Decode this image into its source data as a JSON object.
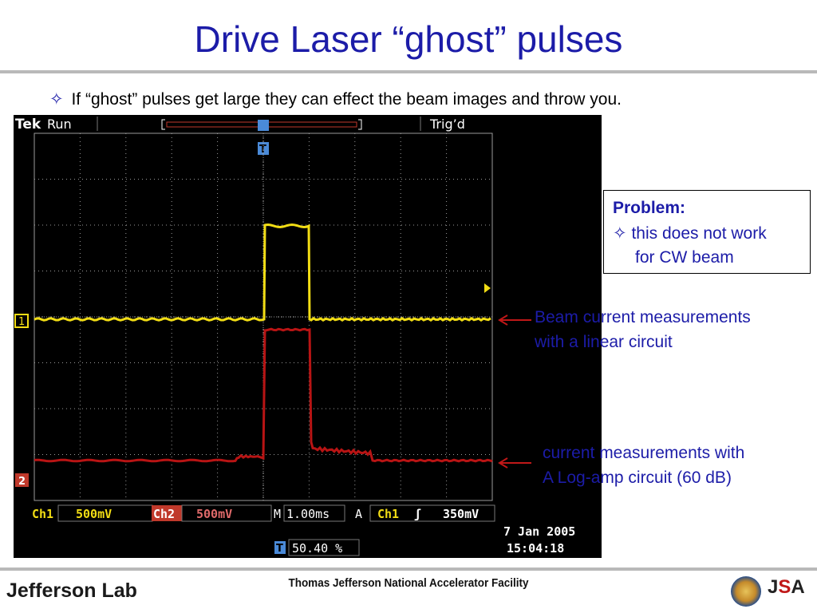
{
  "slide": {
    "title": "Drive Laser “ghost” pulses",
    "bullet_symbol": "✧",
    "bullet_text": "If “ghost” pulses get large they can effect the beam images and throw you."
  },
  "scope": {
    "brand": "Tek",
    "mode": "Run",
    "trig_status": "Trig’d",
    "trigger_marker": "T",
    "ch1_marker": "1",
    "ch2_marker": "2",
    "ch1_label": "Ch1",
    "ch1_scale": "500mV",
    "ch2_label": "Ch2",
    "ch2_scale": "500mV",
    "timebase_prefix": "M",
    "timebase": "1.00ms",
    "trigger_prefix": "A",
    "trigger_source": "Ch1",
    "trigger_slope": "ʃ",
    "trigger_level": "350mV",
    "trigger_position_marker": "T",
    "trigger_position": "50.40 %",
    "date": "7 Jan  2005",
    "time": "15:04:18",
    "colors": {
      "ch1": "#f2dd14",
      "ch2": "#b81414",
      "grid": "#9a9a9a",
      "text": "#ffffff",
      "accent": "#4a8ad8"
    }
  },
  "problem": {
    "heading": "Problem:",
    "bullet_symbol": "✧",
    "line1": "this does not work",
    "line2": "for CW beam"
  },
  "annotations": {
    "linear": {
      "line1": "Beam current measurements",
      "line2": "with a linear circuit"
    },
    "log": {
      "line1": "current measurements with",
      "line2": "A Log-amp circuit (60 dB)"
    }
  },
  "footer": {
    "facility": "Thomas Jefferson National Accelerator Facility",
    "logo_left": "Jefferson Lab",
    "logo_right_j": "J",
    "logo_right_s": "S",
    "logo_right_a": "A"
  }
}
